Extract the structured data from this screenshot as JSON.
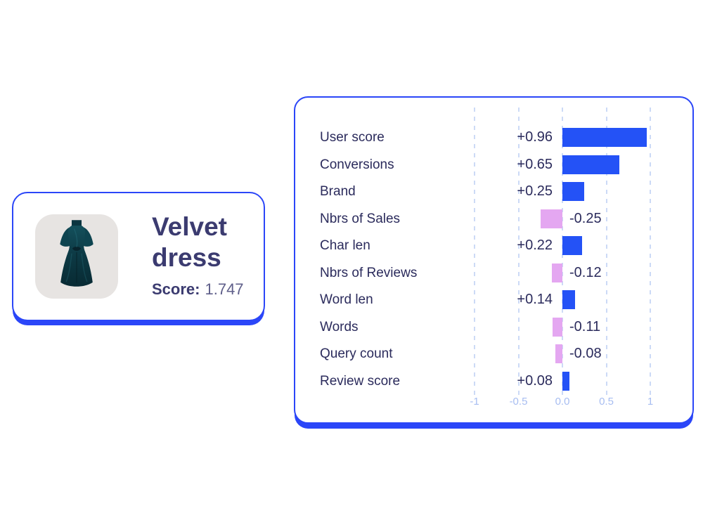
{
  "product_card": {
    "title": "Velvet dress",
    "score_label": "Score:",
    "score_value": "1.747",
    "image_name": "velvet-dress-photo"
  },
  "chart_data": {
    "type": "bar",
    "orientation": "horizontal",
    "categories": [
      "User score",
      "Conversions",
      "Brand",
      "Nbrs of Sales",
      "Char len",
      "Nbrs of Reviews",
      "Word len",
      "Words",
      "Query count",
      "Review score"
    ],
    "values": [
      0.96,
      0.65,
      0.25,
      -0.25,
      0.22,
      -0.12,
      0.14,
      -0.11,
      -0.08,
      0.08
    ],
    "value_labels": [
      "+0.96",
      "+0.65",
      "+0.25",
      "-0.25",
      "+0.22",
      "-0.12",
      "+0.14",
      "-0.11",
      "-0.08",
      "+0.08"
    ],
    "x_ticks": [
      {
        "value": -1,
        "label": "-1"
      },
      {
        "value": -0.5,
        "label": "-0.5"
      },
      {
        "value": 0,
        "label": "0.0"
      },
      {
        "value": 0.5,
        "label": "0.5"
      },
      {
        "value": 1,
        "label": "1"
      }
    ],
    "xlim": [
      -1.05,
      1.05
    ],
    "grid": "dashed-vertical",
    "legend": "none",
    "title": ""
  },
  "colors": {
    "positive_bar": "#2452f6",
    "negative_bar": "#e4a7f1",
    "accent_border": "#2b46f8",
    "label_text": "#2b2b5c",
    "tick_text": "#a7bdf1",
    "gridline": "#ccdaf6",
    "card_title_text": "#3b3b70",
    "score_value_text": "#5f5f8a",
    "tile_background": "#e7e4e2",
    "dress_teal_dark": "#0a323d",
    "dress_teal": "#11454f"
  }
}
